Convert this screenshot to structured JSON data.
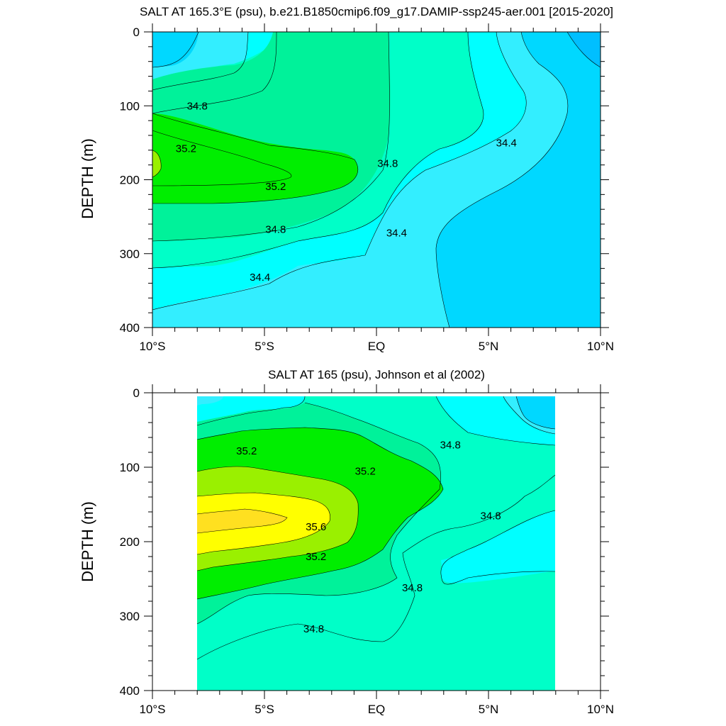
{
  "chart_data": [
    {
      "type": "contour",
      "title": "SALT AT 165.3°E (psu), b.e21.B1850cmip6.f09_g17.DAMIP-ssp245-aer.001 [2015-2020]",
      "ylabel": "DEPTH (m)",
      "xlim": [
        -10,
        10
      ],
      "ylim": [
        400,
        0
      ],
      "data_xlim": [
        -10,
        10
      ],
      "x_tick_labels": [
        "10°S",
        "5°S",
        "EQ",
        "5°N",
        "10°N"
      ],
      "x_ticks": [
        -10,
        -5,
        0,
        5,
        10
      ],
      "y_tick_labels": [
        "0",
        "100",
        "200",
        "300",
        "400"
      ],
      "y_ticks": [
        0,
        100,
        200,
        300,
        400
      ],
      "contour_labels": [
        {
          "text": "34.8",
          "x": -8.0,
          "y": 100
        },
        {
          "text": "35.2",
          "x": -8.5,
          "y": 158
        },
        {
          "text": "35.2",
          "x": -4.5,
          "y": 209
        },
        {
          "text": "34.8",
          "x": -4.5,
          "y": 267
        },
        {
          "text": "34.4",
          "x": -5.2,
          "y": 332
        },
        {
          "text": "34.8",
          "x": 0.5,
          "y": 178
        },
        {
          "text": "34.4",
          "x": 0.9,
          "y": 272
        },
        {
          "text": "34.4",
          "x": 5.8,
          "y": 150
        }
      ],
      "colors": {
        "34.0": "#00BFFF",
        "34.2": "#00D8FF",
        "34.4": "#33EEFF",
        "34.6": "#00FFFF",
        "34.8": "#00FFC8",
        "35.0": "#00F29A",
        "35.2": "#00EE00",
        "35.4": "#9AF000",
        "35.6": "#FFFF00",
        "35.8": "#FFE020"
      }
    },
    {
      "type": "contour",
      "title": "SALT AT 165 (psu), Johnson et al (2002)",
      "ylabel": "DEPTH (m)",
      "xlim": [
        -10,
        10
      ],
      "ylim": [
        400,
        0
      ],
      "data_xlim": [
        -8,
        8
      ],
      "x_tick_labels": [
        "10°S",
        "5°S",
        "EQ",
        "5°N",
        "10°N"
      ],
      "x_ticks": [
        -10,
        -5,
        0,
        5,
        10
      ],
      "y_tick_labels": [
        "0",
        "100",
        "200",
        "300",
        "400"
      ],
      "y_ticks": [
        0,
        100,
        200,
        300,
        400
      ],
      "contour_labels": [
        {
          "text": "35.2",
          "x": -5.8,
          "y": 78
        },
        {
          "text": "35.2",
          "x": -0.5,
          "y": 105
        },
        {
          "text": "35.6",
          "x": -2.7,
          "y": 180
        },
        {
          "text": "35.2",
          "x": -2.7,
          "y": 220
        },
        {
          "text": "34.8",
          "x": -2.8,
          "y": 317
        },
        {
          "text": "34.8",
          "x": 3.3,
          "y": 70
        },
        {
          "text": "34.8",
          "x": 5.1,
          "y": 165
        },
        {
          "text": "34.8",
          "x": 1.6,
          "y": 262
        }
      ]
    }
  ]
}
